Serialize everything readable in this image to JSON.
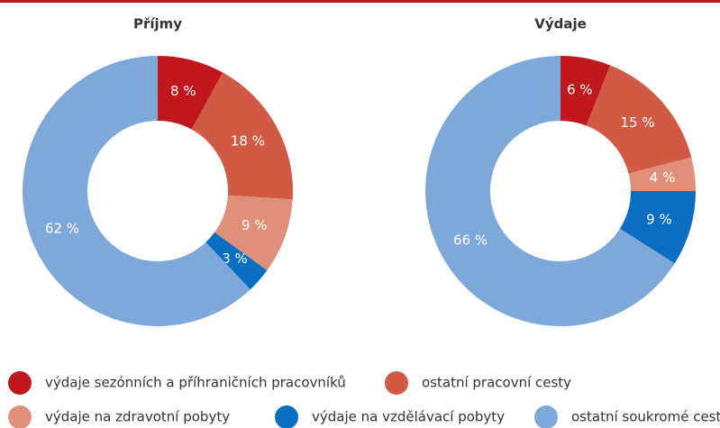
{
  "chart_data": [
    {
      "type": "pie",
      "title": "Příjmy",
      "categories": [
        "výdaje sezónních a příhraničních pracovníků",
        "ostatní pracovní cesty",
        "výdaje na zdravotní pobyty",
        "výdaje na vzdělávací pobyty",
        "ostatní soukromé cesty"
      ],
      "values": [
        8,
        18,
        9,
        3,
        62
      ],
      "value_labels": [
        "8 %",
        "18 %",
        "9 %",
        "3 %",
        "62 %"
      ],
      "colors": [
        "#c0171f",
        "#d05a44",
        "#e0907a",
        "#0a6fc2",
        "#7fa8da"
      ]
    },
    {
      "type": "pie",
      "title": "Výdaje",
      "categories": [
        "výdaje sezónních a příhraničních pracovníků",
        "ostatní pracovní cesty",
        "výdaje na zdravotní pobyty",
        "výdaje na vzdělávací pobyty",
        "ostatní soukromé cesty"
      ],
      "values": [
        6,
        15,
        4,
        9,
        66
      ],
      "value_labels": [
        "6 %",
        "15 %",
        "4 %",
        "9 %",
        "66 %"
      ],
      "colors": [
        "#c0171f",
        "#d05a44",
        "#e0907a",
        "#0a6fc2",
        "#7fa8da"
      ]
    }
  ]
}
